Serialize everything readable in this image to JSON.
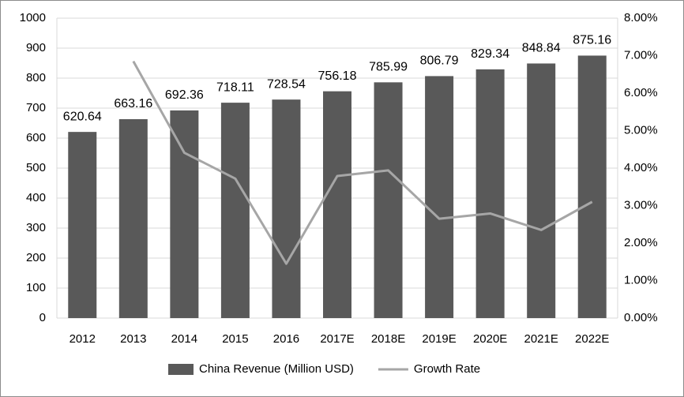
{
  "chart_data": {
    "type": "bar",
    "categories": [
      "2012",
      "2013",
      "2014",
      "2015",
      "2016",
      "2017E",
      "2018E",
      "2019E",
      "2020E",
      "2021E",
      "2022E"
    ],
    "series": [
      {
        "name": "China Revenue (Million USD)",
        "type": "bar",
        "color": "#595959",
        "values": [
          620.64,
          663.16,
          692.36,
          718.11,
          728.54,
          756.18,
          785.99,
          806.79,
          829.34,
          848.84,
          875.16
        ]
      },
      {
        "name": "Growth Rate",
        "type": "line",
        "axis": "y2",
        "color": "#a6a6a6",
        "values": [
          null,
          6.85,
          4.41,
          3.72,
          1.45,
          3.79,
          3.94,
          2.65,
          2.79,
          2.35,
          3.1
        ]
      }
    ],
    "ylim": [
      0,
      1000
    ],
    "yticks": [
      0,
      100,
      200,
      300,
      400,
      500,
      600,
      700,
      800,
      900,
      1000
    ],
    "y2lim": [
      0,
      8
    ],
    "y2ticks": [
      {
        "value": 0,
        "label": "0.00%"
      },
      {
        "value": 1,
        "label": "1.00%"
      },
      {
        "value": 2,
        "label": "2.00%"
      },
      {
        "value": 3,
        "label": "3.00%"
      },
      {
        "value": 4,
        "label": "4.00%"
      },
      {
        "value": 5,
        "label": "5.00%"
      },
      {
        "value": 6,
        "label": "6.00%"
      },
      {
        "value": 7,
        "label": "7.00%"
      },
      {
        "value": 8,
        "label": "8.00%"
      }
    ],
    "grid": true,
    "legend": "bottom"
  }
}
